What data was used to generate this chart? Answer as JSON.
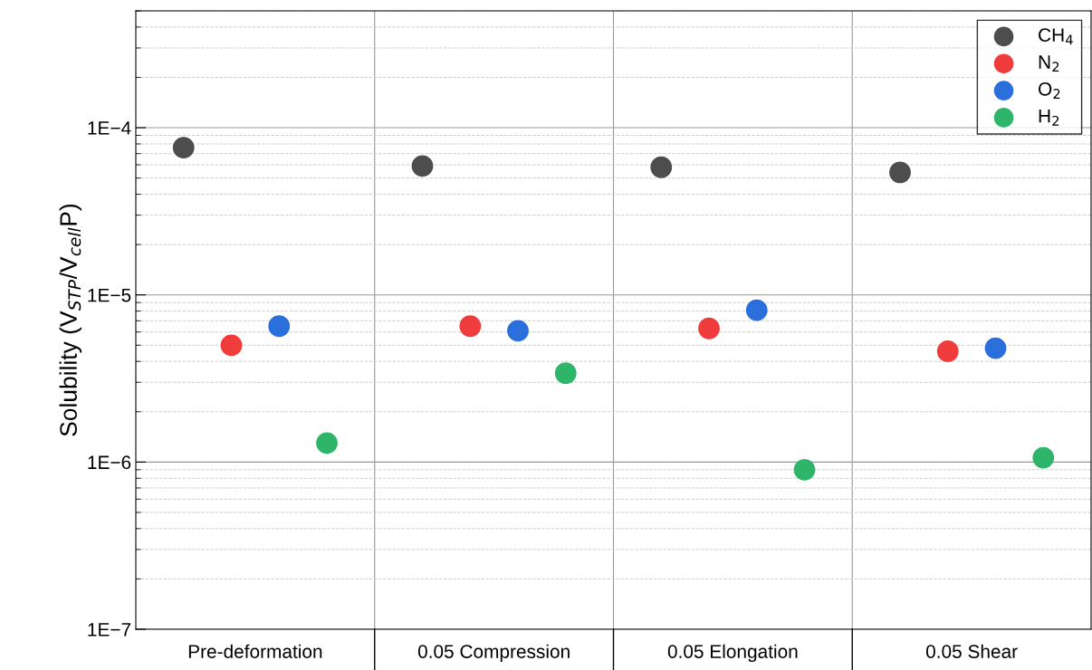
{
  "chart_data": {
    "type": "scatter",
    "ylabel": "Solubility (V$_{STP}$/V$_{cell}$P)",
    "categories": [
      "Pre-deformation",
      "0.05 Compression",
      "0.05 Elongation",
      "0.05 Shear"
    ],
    "series": [
      {
        "name": "CH$_{4}$",
        "color": "#4d4d4d",
        "values": [
          7.6e-05,
          5.9e-05,
          5.8e-05,
          5.4e-05
        ]
      },
      {
        "name": "N$_{2}$",
        "color": "#f03c3c",
        "values": [
          5e-06,
          6.5e-06,
          6.3e-06,
          4.6e-06
        ]
      },
      {
        "name": "O$_{2}$",
        "color": "#2a6fdb",
        "values": [
          6.5e-06,
          6.1e-06,
          8.1e-06,
          4.8e-06
        ]
      },
      {
        "name": "H$_{2}$",
        "color": "#2fb56a",
        "values": [
          1.3e-06,
          3.4e-06,
          9e-07,
          1.06e-06
        ]
      }
    ],
    "log": "y",
    "ylim": [
      1e-07,
      0.0005
    ],
    "yticks": [
      {
        "value": 1e-07,
        "label": "1E−7"
      },
      {
        "value": 1e-06,
        "label": "1E−6"
      },
      {
        "value": 1e-05,
        "label": "1E−5"
      },
      {
        "value": 0.0001,
        "label": "1E−4"
      }
    ],
    "grid": true,
    "legend": "top right",
    "marker": "circle"
  }
}
